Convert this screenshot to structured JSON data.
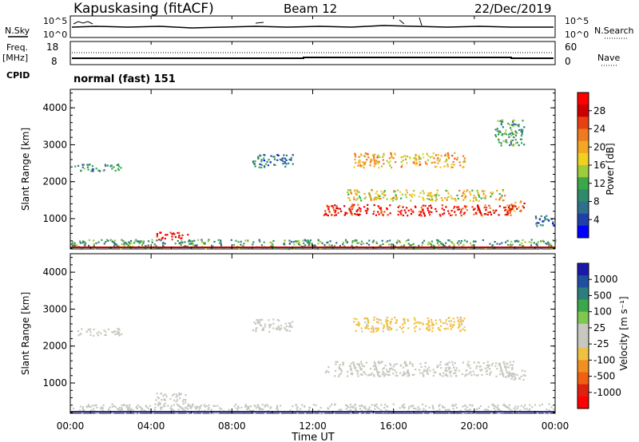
{
  "header": {
    "station": "Kapuskasing (fitACF)",
    "beam": "Beam 12",
    "date": "22/Dec/2019"
  },
  "labels": {
    "nsky": "N.Sky",
    "nsearch": "N.Search",
    "freq_top": "Freq.",
    "freq_unit": "[MHz]",
    "nave": "Nave",
    "cpid": "CPID",
    "program": "normal (fast) 151",
    "xlabel": "Time UT",
    "ylabel": "Slant Range [km]",
    "power_label": "Power [dB]",
    "velocity_label": "Velocity  [m s⁻¹]"
  },
  "noise_axis": {
    "left": [
      "10^5",
      "10^0"
    ],
    "right": [
      "10^5",
      "10^0"
    ]
  },
  "freq_axis": {
    "left": [
      "18",
      "8"
    ],
    "right": [
      "60",
      "0"
    ]
  },
  "x_ticks": [
    "00:00",
    "04:00",
    "08:00",
    "12:00",
    "16:00",
    "20:00",
    "00:00"
  ],
  "range_ticks": [
    "1000",
    "2000",
    "3000",
    "4000"
  ],
  "power_scale": {
    "ticks": [
      "4",
      "8",
      "12",
      "16",
      "20",
      "24",
      "28"
    ],
    "colors": [
      "#0000ff",
      "#1e40a8",
      "#2e6f8e",
      "#2e8a6a",
      "#3aa84a",
      "#9fcc3a",
      "#f0d020",
      "#f5a623",
      "#f07a20",
      "#e84010",
      "#cc0000",
      "#ff0000"
    ]
  },
  "velocity_scale": {
    "ticks": [
      "1000",
      "500",
      "100",
      "25",
      "-25",
      "-100",
      "-500",
      "-1000"
    ],
    "colors": [
      "#1a1aa8",
      "#1f4fa0",
      "#2e7d7d",
      "#3aa84a",
      "#7ec850",
      "#c8c8c0",
      "#c8c8c0",
      "#f0c040",
      "#f09020",
      "#f06010",
      "#e02010",
      "#ff0000"
    ]
  },
  "chart_data": {
    "type": "heatmap",
    "title": "Kapuskasing (fitACF)  Beam 12  22/Dec/2019",
    "xlabel": "Time UT",
    "ylabel": "Slant Range [km]",
    "x_range_hours": [
      0,
      24
    ],
    "y_range_km": [
      180,
      4500
    ],
    "panels": [
      {
        "name": "Power [dB]",
        "colorbar_range": [
          0,
          30
        ],
        "echo_regions": [
          {
            "t_start": 0.0,
            "t_end": 24.0,
            "r_start": 200,
            "r_end": 450,
            "value": 10
          },
          {
            "t_start": 0.2,
            "t_end": 2.5,
            "r_start": 2300,
            "r_end": 2500,
            "value": 8
          },
          {
            "t_start": 4.2,
            "t_end": 5.8,
            "r_start": 450,
            "r_end": 650,
            "value": 28
          },
          {
            "t_start": 9.0,
            "t_end": 11.0,
            "r_start": 2400,
            "r_end": 2750,
            "value": 7
          },
          {
            "t_start": 12.5,
            "t_end": 22.0,
            "r_start": 1100,
            "r_end": 1400,
            "value": 26
          },
          {
            "t_start": 13.5,
            "t_end": 21.5,
            "r_start": 1500,
            "r_end": 1800,
            "value": 16
          },
          {
            "t_start": 14.0,
            "t_end": 19.5,
            "r_start": 2400,
            "r_end": 2800,
            "value": 18
          },
          {
            "t_start": 21.5,
            "t_end": 22.5,
            "r_start": 1200,
            "r_end": 1500,
            "value": 22
          },
          {
            "t_start": 21.0,
            "t_end": 22.5,
            "r_start": 3000,
            "r_end": 3700,
            "value": 10
          },
          {
            "t_start": 23.0,
            "t_end": 24.0,
            "r_start": 800,
            "r_end": 1100,
            "value": 6
          }
        ]
      },
      {
        "name": "Velocity [m s-1]",
        "colorbar_range": [
          -1000,
          1000
        ],
        "echo_regions": [
          {
            "t_start": 0.0,
            "t_end": 24.0,
            "r_start": 200,
            "r_end": 450,
            "value": 20
          },
          {
            "t_start": 0.2,
            "t_end": 2.5,
            "r_start": 2300,
            "r_end": 2500,
            "value": 0
          },
          {
            "t_start": 4.2,
            "t_end": 5.8,
            "r_start": 450,
            "r_end": 750,
            "value": 60
          },
          {
            "t_start": 9.0,
            "t_end": 11.0,
            "r_start": 2400,
            "r_end": 2750,
            "value": 0
          },
          {
            "t_start": 12.5,
            "t_end": 22.0,
            "r_start": 1200,
            "r_end": 1600,
            "value": 0
          },
          {
            "t_start": 14.0,
            "t_end": 19.5,
            "r_start": 2400,
            "r_end": 2800,
            "value": -200
          },
          {
            "t_start": 21.5,
            "t_end": 22.5,
            "r_start": 1100,
            "r_end": 1400,
            "value": 40
          }
        ]
      }
    ],
    "freq_mhz": 10.5,
    "nave": 20
  }
}
